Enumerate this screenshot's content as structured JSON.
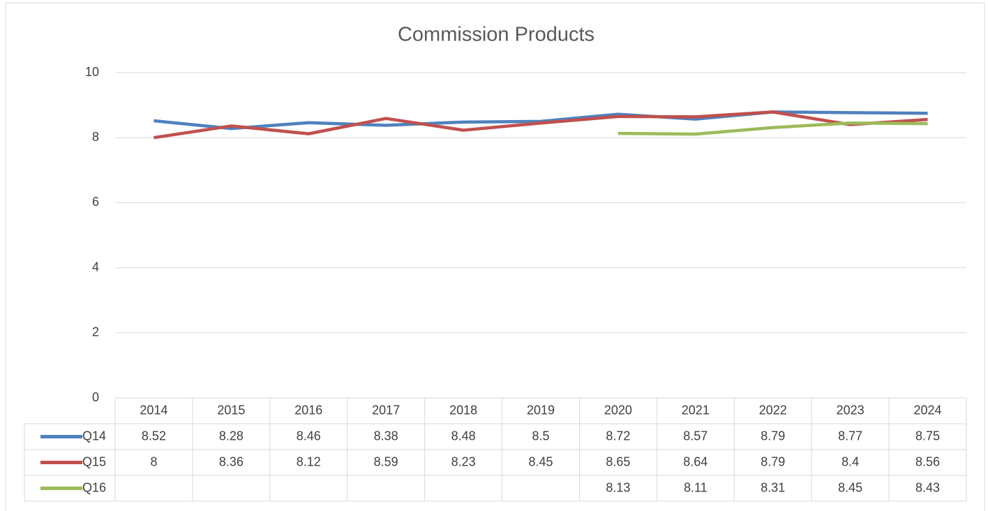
{
  "chart_data": {
    "type": "line",
    "title": "Commission Products",
    "categories": [
      "2014",
      "2015",
      "2016",
      "2017",
      "2018",
      "2019",
      "2020",
      "2021",
      "2022",
      "2023",
      "2024"
    ],
    "series": [
      {
        "name": "Q14",
        "color": "#4f81bd",
        "values": [
          8.52,
          8.28,
          8.46,
          8.38,
          8.48,
          8.5,
          8.72,
          8.57,
          8.79,
          8.77,
          8.75
        ]
      },
      {
        "name": "Q15",
        "color": "#c0504d",
        "values": [
          8,
          8.36,
          8.12,
          8.59,
          8.23,
          8.45,
          8.65,
          8.64,
          8.79,
          8.4,
          8.56
        ]
      },
      {
        "name": "Q16",
        "color": "#9bbb59",
        "values": [
          null,
          null,
          null,
          null,
          null,
          null,
          8.13,
          8.11,
          8.31,
          8.45,
          8.43
        ]
      }
    ],
    "ylim": [
      0,
      10
    ],
    "yticks": [
      0,
      2,
      4,
      6,
      8,
      10
    ],
    "grid": true
  }
}
